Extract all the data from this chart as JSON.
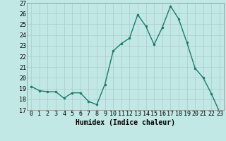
{
  "x": [
    0,
    1,
    2,
    3,
    4,
    5,
    6,
    7,
    8,
    9,
    10,
    11,
    12,
    13,
    14,
    15,
    16,
    17,
    18,
    19,
    20,
    21,
    22,
    23
  ],
  "y": [
    19.2,
    18.8,
    18.7,
    18.7,
    18.1,
    18.6,
    18.6,
    17.8,
    17.5,
    19.4,
    22.5,
    23.2,
    23.7,
    25.9,
    24.8,
    23.1,
    24.7,
    26.7,
    25.5,
    23.3,
    20.9,
    20.0,
    18.5,
    16.8
  ],
  "line_color": "#1a7a6a",
  "marker": "o",
  "marker_size": 2.0,
  "linewidth": 1.0,
  "xlabel": "Humidex (Indice chaleur)",
  "xlim": [
    -0.5,
    23.5
  ],
  "ylim": [
    17,
    27
  ],
  "yticks": [
    17,
    18,
    19,
    20,
    21,
    22,
    23,
    24,
    25,
    26,
    27
  ],
  "xticks": [
    0,
    1,
    2,
    3,
    4,
    5,
    6,
    7,
    8,
    9,
    10,
    11,
    12,
    13,
    14,
    15,
    16,
    17,
    18,
    19,
    20,
    21,
    22,
    23
  ],
  "bg_color": "#c2e8e5",
  "grid_color": "#a8cccb",
  "xlabel_fontsize": 7.0,
  "tick_fontsize": 6.0
}
